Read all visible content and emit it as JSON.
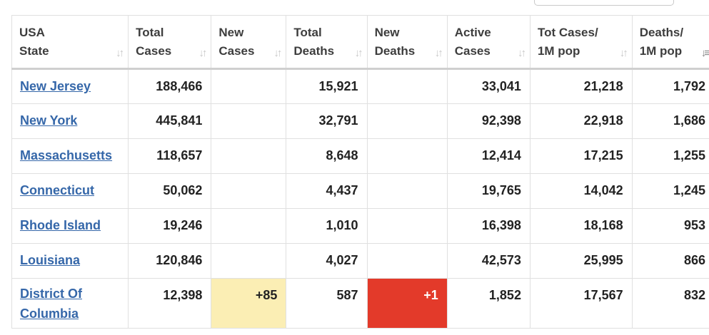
{
  "columns": [
    {
      "line1": "USA",
      "line2": "State",
      "sort_icon": "sort-icon"
    },
    {
      "line1": "Total",
      "line2": "Cases",
      "sort_icon": "sort-icon"
    },
    {
      "line1": "New",
      "line2": "Cases",
      "sort_icon": "sort-icon"
    },
    {
      "line1": "Total",
      "line2": "Deaths",
      "sort_icon": "sort-icon"
    },
    {
      "line1": "New",
      "line2": "Deaths",
      "sort_icon": "sort-icon"
    },
    {
      "line1": "Active",
      "line2": "Cases",
      "sort_icon": "sort-icon"
    },
    {
      "line1": "Tot Cases/",
      "line2": "1M pop",
      "sort_icon": "sort-icon"
    },
    {
      "line1": "Deaths/",
      "line2": "1M pop",
      "sort_icon": "sort-descending-icon"
    }
  ],
  "rows": [
    {
      "state": "New Jersey",
      "total_cases": "188,466",
      "new_cases": "",
      "total_deaths": "15,921",
      "new_deaths": "",
      "active_cases": "33,041",
      "cases_per_1m": "21,218",
      "deaths_per_1m": "1,792"
    },
    {
      "state": "New York",
      "total_cases": "445,841",
      "new_cases": "",
      "total_deaths": "32,791",
      "new_deaths": "",
      "active_cases": "92,398",
      "cases_per_1m": "22,918",
      "deaths_per_1m": "1,686"
    },
    {
      "state": "Massachusetts",
      "total_cases": "118,657",
      "new_cases": "",
      "total_deaths": "8,648",
      "new_deaths": "",
      "active_cases": "12,414",
      "cases_per_1m": "17,215",
      "deaths_per_1m": "1,255"
    },
    {
      "state": "Connecticut",
      "total_cases": "50,062",
      "new_cases": "",
      "total_deaths": "4,437",
      "new_deaths": "",
      "active_cases": "19,765",
      "cases_per_1m": "14,042",
      "deaths_per_1m": "1,245"
    },
    {
      "state": "Rhode Island",
      "total_cases": "19,246",
      "new_cases": "",
      "total_deaths": "1,010",
      "new_deaths": "",
      "active_cases": "16,398",
      "cases_per_1m": "18,168",
      "deaths_per_1m": "953"
    },
    {
      "state": "Louisiana",
      "total_cases": "120,846",
      "new_cases": "",
      "total_deaths": "4,027",
      "new_deaths": "",
      "active_cases": "42,573",
      "cases_per_1m": "25,995",
      "deaths_per_1m": "866"
    },
    {
      "state": "District Of Columbia",
      "total_cases": "12,398",
      "new_cases": "+85",
      "total_deaths": "587",
      "new_deaths": "+1",
      "active_cases": "1,852",
      "cases_per_1m": "17,567",
      "deaths_per_1m": "832"
    }
  ],
  "colors": {
    "link": "#3567a9",
    "new_cases_highlight": "#fbeeb4",
    "new_deaths_highlight": "#e33a2a"
  }
}
